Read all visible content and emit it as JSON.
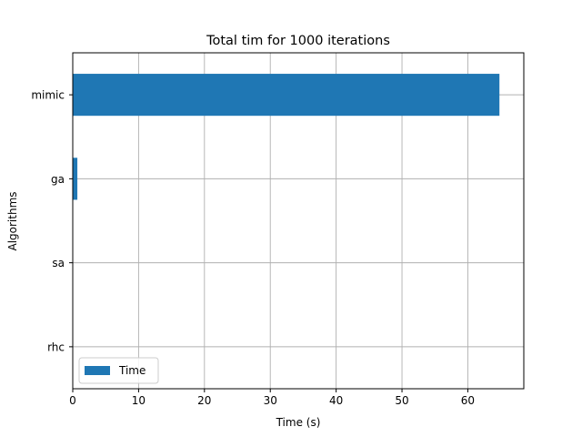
{
  "chart_data": {
    "type": "bar",
    "orientation": "horizontal",
    "title": "Total tim for 1000 iterations",
    "xlabel": "Time (s)",
    "ylabel": "Algorithms",
    "categories": [
      "rhc",
      "sa",
      "ga",
      "mimic"
    ],
    "series": [
      {
        "name": "Time",
        "values": [
          0.02,
          0.05,
          0.7,
          64.8
        ],
        "color": "#1f77b4"
      }
    ],
    "xlim": [
      0,
      68.5
    ],
    "xticks": [
      0,
      10,
      20,
      30,
      40,
      50,
      60
    ],
    "xtick_labels": [
      "0",
      "10",
      "20",
      "30",
      "40",
      "50",
      "60"
    ],
    "grid": true,
    "legend": "lower-left"
  }
}
